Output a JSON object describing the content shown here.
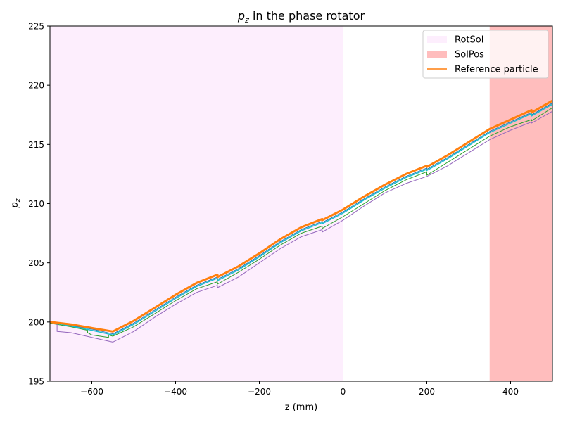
{
  "chart_data": {
    "type": "line",
    "title_main": "p",
    "title_sub": "z",
    "title_rest": " in the phase rotator",
    "xlabel": "z (mm)",
    "ylabel_main": "p",
    "ylabel_sub": "z",
    "xlim": [
      -700,
      500
    ],
    "ylim": [
      195,
      225
    ],
    "xticks": [
      -600,
      -400,
      -200,
      0,
      200,
      400
    ],
    "xtick_labels": [
      "−600",
      "−400",
      "−200",
      "0",
      "200",
      "400"
    ],
    "yticks": [
      195,
      200,
      205,
      210,
      215,
      220,
      225
    ],
    "ytick_labels": [
      "195",
      "200",
      "205",
      "210",
      "215",
      "220",
      "225"
    ],
    "regions": [
      {
        "name": "RotSol",
        "x": [
          -700,
          0
        ],
        "color": "#fdeefd"
      },
      {
        "name": "SolPos",
        "x": [
          350,
          500
        ],
        "color": "#ffbdbd"
      }
    ],
    "legend": {
      "position": "top-right",
      "entries": [
        {
          "label": "RotSol",
          "kind": "patch",
          "color": "#fdeefd"
        },
        {
          "label": "SolPos",
          "kind": "patch",
          "color": "#ffbdbd"
        },
        {
          "label": "Reference particle",
          "kind": "line",
          "color": "#ff7f0e"
        }
      ]
    },
    "series": [
      {
        "name": "Reference particle",
        "color": "#ff7f0e",
        "width": 3,
        "x": [
          -700,
          -650,
          -600,
          -550,
          -500,
          -450,
          -400,
          -350,
          -300,
          -300,
          -250,
          -200,
          -150,
          -100,
          -50,
          -50,
          0,
          50,
          100,
          150,
          200,
          200,
          250,
          300,
          350,
          400,
          450,
          450,
          500
        ],
        "y": [
          200,
          199.8,
          199.5,
          199.2,
          200.1,
          201.2,
          202.3,
          203.3,
          204.0,
          203.8,
          204.7,
          205.8,
          207.0,
          208.0,
          208.7,
          208.6,
          209.5,
          210.6,
          211.6,
          212.5,
          213.2,
          213.1,
          214.1,
          215.2,
          216.3,
          217.1,
          217.9,
          217.7,
          218.7
        ]
      },
      {
        "name": "",
        "color": "#1f77b4",
        "width": 1,
        "x": [
          -700,
          -650,
          -600,
          -550,
          -500,
          -450,
          -400,
          -350,
          -300,
          -300,
          -250,
          -200,
          -150,
          -100,
          -50,
          -50,
          0,
          50,
          100,
          150,
          200,
          200,
          250,
          300,
          350,
          400,
          450,
          450,
          500
        ],
        "y": [
          200,
          199.7,
          199.4,
          199.0,
          199.9,
          201.0,
          202.1,
          203.1,
          203.8,
          203.6,
          204.5,
          205.6,
          206.8,
          207.8,
          208.5,
          208.4,
          209.3,
          210.4,
          211.4,
          212.3,
          213.0,
          212.9,
          213.9,
          215.0,
          216.1,
          216.9,
          217.7,
          217.5,
          218.5
        ]
      },
      {
        "name": "",
        "color": "#17becf",
        "width": 1.5,
        "x": [
          -700,
          -650,
          -600,
          -550,
          -500,
          -450,
          -400,
          -350,
          -300,
          -300,
          -250,
          -200,
          -150,
          -100,
          -50,
          -50,
          0,
          50,
          100,
          150,
          200,
          200,
          250,
          300,
          350,
          400,
          450,
          450,
          500
        ],
        "y": [
          200,
          199.65,
          199.3,
          198.9,
          199.8,
          200.9,
          202.0,
          203.0,
          203.7,
          203.5,
          204.4,
          205.5,
          206.7,
          207.7,
          208.4,
          208.3,
          209.2,
          210.3,
          211.3,
          212.2,
          212.9,
          212.8,
          213.8,
          214.9,
          216.0,
          216.8,
          217.6,
          217.4,
          218.4
        ]
      },
      {
        "name": "",
        "color": "#2ca02c",
        "width": 1,
        "x": [
          -700,
          -650,
          -610,
          -610,
          -600,
          -560,
          -560,
          -550,
          -500,
          -450,
          -400,
          -350,
          -300,
          -300,
          -250,
          -200,
          -150,
          -100,
          -50,
          -50,
          0,
          50,
          100,
          150,
          200,
          200,
          250,
          300,
          350,
          400,
          450,
          450,
          500
        ],
        "y": [
          199.9,
          199.6,
          199.3,
          199.1,
          198.9,
          198.7,
          198.9,
          198.8,
          199.6,
          200.7,
          201.8,
          202.8,
          203.4,
          203.2,
          204.2,
          205.3,
          206.5,
          207.5,
          208.1,
          207.9,
          208.9,
          210.0,
          211.1,
          212.0,
          212.7,
          212.4,
          213.5,
          214.6,
          215.7,
          216.5,
          217.1,
          217.0,
          218.1
        ]
      },
      {
        "name": "",
        "color": "#9467bd",
        "width": 1,
        "x": [
          -700,
          -683,
          -683,
          -650,
          -600,
          -550,
          -500,
          -450,
          -400,
          -350,
          -300,
          -300,
          -250,
          -200,
          -150,
          -100,
          -50,
          -50,
          0,
          50,
          100,
          150,
          200,
          200,
          250,
          300,
          350,
          400,
          450,
          450,
          500
        ],
        "y": [
          200,
          199.9,
          199.2,
          199.1,
          198.7,
          198.3,
          199.2,
          200.4,
          201.5,
          202.5,
          203.1,
          202.9,
          203.8,
          205.0,
          206.2,
          207.2,
          207.8,
          207.6,
          208.6,
          209.8,
          210.9,
          211.7,
          212.3,
          212.3,
          213.2,
          214.3,
          215.4,
          216.2,
          216.9,
          216.8,
          217.8
        ]
      }
    ]
  }
}
